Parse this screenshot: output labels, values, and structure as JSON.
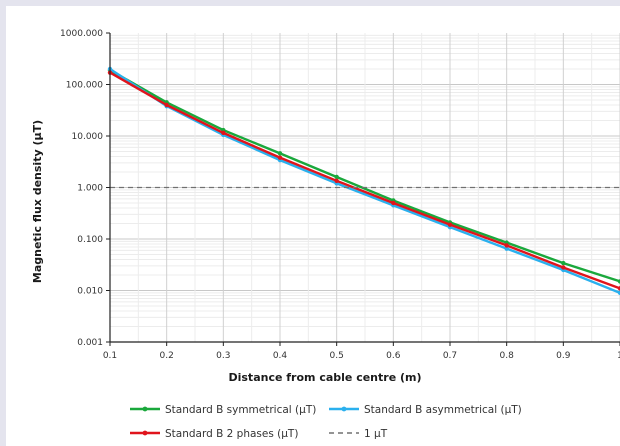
{
  "chart_data": {
    "type": "line",
    "title": "",
    "xlabel": "Distance from cable centre (m)",
    "ylabel": "Magnetic flux density (µT)",
    "xlim": [
      0.1,
      1
    ],
    "ylim": [
      0.001,
      1000
    ],
    "yscale": "log",
    "x_tick_labels": [
      "0.1",
      "0.2",
      "0.3",
      "0.4",
      "0.5",
      "0.6",
      "0.7",
      "0.8",
      "0.9",
      "1"
    ],
    "y_tick_labels": [
      "0.001",
      "0.010",
      "0.100",
      "1.000",
      "10.000",
      "100.000",
      "1000.000"
    ],
    "grid": true,
    "legend_position": "bottom",
    "x": [
      0.1,
      0.2,
      0.3,
      0.4,
      0.5,
      0.6,
      0.7,
      0.8,
      0.9,
      1.0
    ],
    "series": [
      {
        "name": "Standard B symmetrical (µT)",
        "color": "#1aa83c",
        "style": "solid",
        "values": [
          190,
          45,
          13,
          4.6,
          1.6,
          0.56,
          0.21,
          0.085,
          0.034,
          0.015
        ]
      },
      {
        "name": "Standard B asymmetrical (µT)",
        "color": "#2ab0ee",
        "style": "solid",
        "values": [
          200,
          38,
          10.5,
          3.4,
          1.2,
          0.45,
          0.17,
          0.065,
          0.025,
          0.009
        ]
      },
      {
        "name": "Standard B 2 phases (µT)",
        "color": "#e0141c",
        "style": "solid",
        "values": [
          170,
          40,
          11.5,
          3.8,
          1.35,
          0.5,
          0.19,
          0.075,
          0.028,
          0.011
        ]
      },
      {
        "name": "1 µT",
        "color": "#707070",
        "style": "dashed",
        "values": [
          1,
          1,
          1,
          1,
          1,
          1,
          1,
          1,
          1,
          1
        ]
      }
    ]
  }
}
